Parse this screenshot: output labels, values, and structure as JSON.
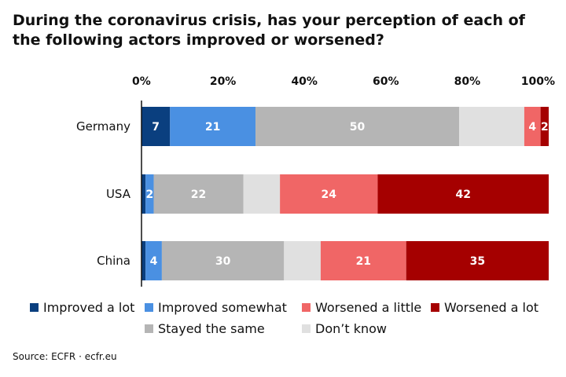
{
  "chart_data": {
    "type": "bar",
    "orientation": "horizontal",
    "stacked": true,
    "title": "During the coronavirus crisis, has your perception of each of the following actors improved or worsened?",
    "xlim": [
      0,
      100
    ],
    "xticks": [
      "0%",
      "20%",
      "40%",
      "60%",
      "80%",
      "100%"
    ],
    "categories": [
      "Germany",
      "USA",
      "China"
    ],
    "series": [
      {
        "name": "Improved a lot",
        "color": "#0a3f7f",
        "values": [
          7,
          1,
          1
        ],
        "labels": [
          "7",
          "",
          ""
        ]
      },
      {
        "name": "Improved somewhat",
        "color": "#4a90e2",
        "values": [
          21,
          2,
          4
        ],
        "labels": [
          "21",
          "2",
          "4"
        ]
      },
      {
        "name": "Stayed the same",
        "color": "#b5b5b5",
        "values": [
          50,
          22,
          30
        ],
        "labels": [
          "50",
          "22",
          "30"
        ]
      },
      {
        "name": "Don't know",
        "color": "#e0e0e0",
        "values": [
          16,
          9,
          9
        ],
        "labels": [
          "",
          "",
          ""
        ]
      },
      {
        "name": "Worsened a little",
        "color": "#f06666",
        "values": [
          4,
          24,
          21
        ],
        "labels": [
          "4",
          "24",
          "21"
        ]
      },
      {
        "name": "Worsened a lot",
        "color": "#a50000",
        "values": [
          2,
          42,
          35
        ],
        "labels": [
          "2",
          "42",
          "35"
        ]
      }
    ],
    "legend": {
      "placement": "bottom",
      "rows": [
        [
          "Improved a lot",
          "Improved somewhat",
          "Worsened a little",
          "Worsened a lot"
        ],
        [
          "Stayed the same",
          "Don’t know"
        ]
      ]
    }
  },
  "source": "Source:  ECFR · ecfr.eu"
}
